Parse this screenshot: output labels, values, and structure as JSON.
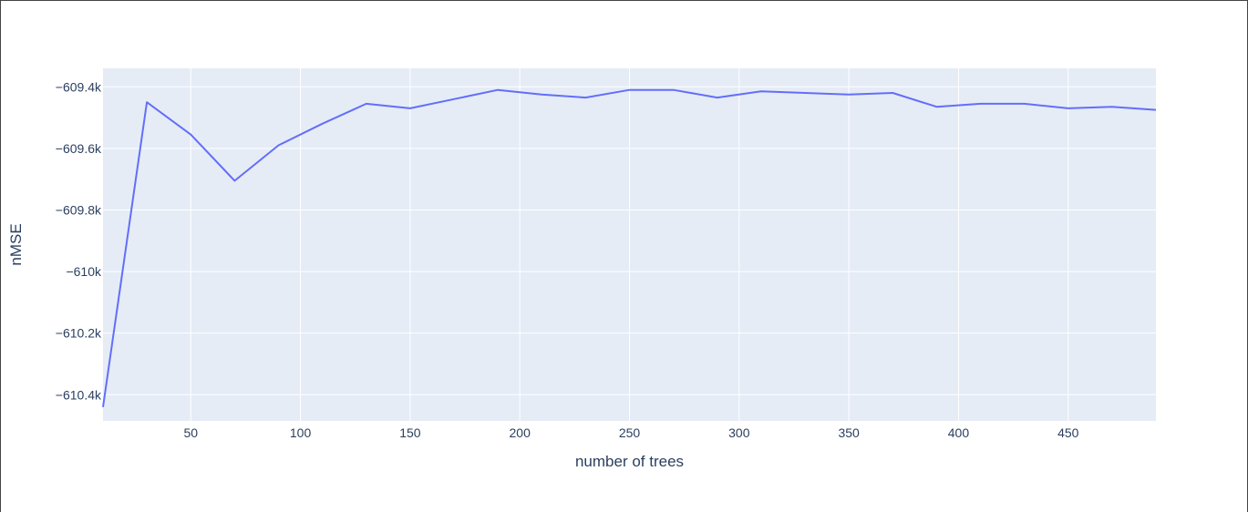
{
  "chart_data": {
    "type": "line",
    "title": "",
    "xlabel": "number of trees",
    "ylabel": "nMSE",
    "xlim": [
      10,
      490
    ],
    "ylim": [
      -610.485,
      -609.34
    ],
    "x_ticks": [
      50,
      100,
      150,
      200,
      250,
      300,
      350,
      400,
      450
    ],
    "x_tick_labels": [
      "50",
      "100",
      "150",
      "200",
      "250",
      "300",
      "350",
      "400",
      "450"
    ],
    "y_ticks": [
      -609.4,
      -609.6,
      -609.8,
      -610.0,
      -610.2,
      -610.4
    ],
    "y_tick_labels": [
      "−609.4k",
      "−609.6k",
      "−609.8k",
      "−610k",
      "−610.2k",
      "−610.4k"
    ],
    "grid": true,
    "colors": {
      "plot_bg": "#e5ecf6",
      "grid": "#ffffff",
      "line": "#636efa",
      "text": "#2a3f5f"
    },
    "series": [
      {
        "x": [
          10,
          30,
          50,
          70,
          90,
          110,
          130,
          150,
          170,
          190,
          210,
          230,
          250,
          270,
          290,
          310,
          330,
          350,
          370,
          390,
          410,
          430,
          450,
          470,
          490
        ],
        "values": [
          -610.44,
          -609.45,
          -609.555,
          -609.705,
          -609.59,
          -609.52,
          -609.455,
          -609.47,
          -609.44,
          -609.41,
          -609.425,
          -609.435,
          -609.41,
          -609.41,
          -609.435,
          -609.415,
          -609.42,
          -609.425,
          -609.42,
          -609.465,
          -609.455,
          -609.455,
          -609.47,
          -609.465,
          -609.475
        ]
      }
    ]
  }
}
